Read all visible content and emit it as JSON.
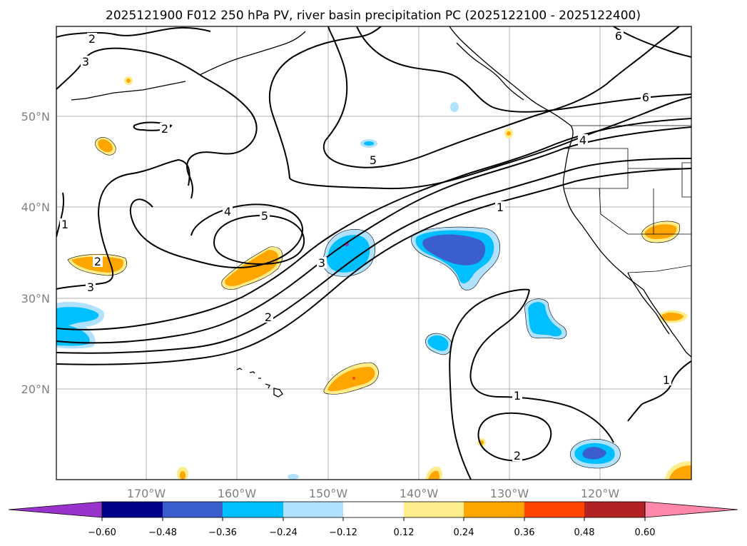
{
  "title": "2025121900 F012 250 hPa PV, river basin precipitation PC (2025122100 - 2025122400)",
  "lat_labels": [
    "50°N",
    "40°N",
    "30°N",
    "20°N"
  ],
  "lon_labels": [
    "170°W",
    "160°W",
    "150°W",
    "140°W",
    "130°W",
    "120°W"
  ],
  "colorbar": {
    "ticks": [
      "−0.60",
      "−0.48",
      "−0.36",
      "−0.24",
      "−0.12",
      "0.12",
      "0.24",
      "0.36",
      "0.48",
      "0.60"
    ],
    "colors": [
      "#9933cc",
      "#00008b",
      "#3a5fcd",
      "#00bfff",
      "#b0e2ff",
      "#ffffff",
      "#ffec8b",
      "#ffa500",
      "#ff4500",
      "#b22222",
      "#ff88aa"
    ]
  },
  "contour_labels": [
    "2",
    "3",
    "2",
    "2",
    "3",
    "1",
    "4",
    "5",
    "3",
    "2",
    "5",
    "4",
    "6",
    "6",
    "1",
    "1",
    "1",
    "2"
  ],
  "colors": {
    "orange": "#ffa500",
    "pale_yellow": "#ffec8b",
    "light_blue": "#b0e2ff",
    "deep_sky": "#00bfff",
    "royal_blue": "#3a5fcd",
    "purple": "#9933cc",
    "red": "#ff4500"
  }
}
